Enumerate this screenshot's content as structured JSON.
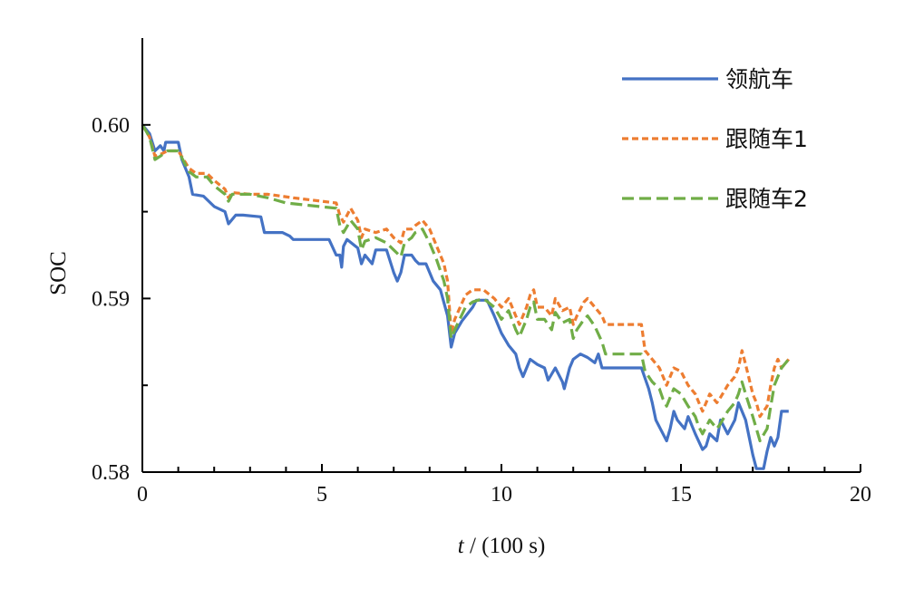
{
  "chart_data": {
    "type": "line",
    "title": "",
    "xlabel_italic": "t",
    "xlabel_rest": " / (100 s)",
    "ylabel": "SOC",
    "xlim": [
      0,
      20
    ],
    "ylim": [
      0.58,
      0.605
    ],
    "x_ticks": [
      "0",
      "5",
      "10",
      "15",
      "20"
    ],
    "x_tick_values": [
      0,
      5,
      10,
      15,
      20
    ],
    "y_ticks": [
      "0.58",
      "0.59",
      "0.60"
    ],
    "y_tick_values": [
      0.58,
      0.59,
      0.6
    ],
    "grid": false,
    "legend_position": "top-right",
    "series": [
      {
        "name": "领航车",
        "color": "#4472c4",
        "dash": "solid",
        "points": [
          [
            0,
            0.6
          ],
          [
            0.2,
            0.5995
          ],
          [
            0.35,
            0.5985
          ],
          [
            0.5,
            0.5988
          ],
          [
            0.6,
            0.5985
          ],
          [
            0.65,
            0.599
          ],
          [
            1.0,
            0.599
          ],
          [
            1.1,
            0.598
          ],
          [
            1.3,
            0.597
          ],
          [
            1.4,
            0.596
          ],
          [
            1.7,
            0.5959
          ],
          [
            2.0,
            0.5953
          ],
          [
            2.3,
            0.595
          ],
          [
            2.4,
            0.5943
          ],
          [
            2.6,
            0.5948
          ],
          [
            2.8,
            0.5948
          ],
          [
            3.3,
            0.5947
          ],
          [
            3.4,
            0.5938
          ],
          [
            3.9,
            0.5938
          ],
          [
            4.1,
            0.5936
          ],
          [
            4.2,
            0.5934
          ],
          [
            5.2,
            0.5934
          ],
          [
            5.4,
            0.5925
          ],
          [
            5.5,
            0.5925
          ],
          [
            5.55,
            0.5918
          ],
          [
            5.6,
            0.593
          ],
          [
            5.7,
            0.5934
          ],
          [
            6.0,
            0.5929
          ],
          [
            6.1,
            0.592
          ],
          [
            6.2,
            0.5925
          ],
          [
            6.4,
            0.592
          ],
          [
            6.5,
            0.5928
          ],
          [
            6.8,
            0.5928
          ],
          [
            7.0,
            0.5915
          ],
          [
            7.1,
            0.591
          ],
          [
            7.2,
            0.5915
          ],
          [
            7.3,
            0.5925
          ],
          [
            7.5,
            0.5925
          ],
          [
            7.6,
            0.5922
          ],
          [
            7.7,
            0.592
          ],
          [
            7.9,
            0.592
          ],
          [
            8.1,
            0.591
          ],
          [
            8.3,
            0.5905
          ],
          [
            8.5,
            0.589
          ],
          [
            8.6,
            0.5872
          ],
          [
            8.7,
            0.588
          ],
          [
            8.9,
            0.5887
          ],
          [
            9.2,
            0.5895
          ],
          [
            9.3,
            0.5899
          ],
          [
            9.6,
            0.5899
          ],
          [
            9.8,
            0.589
          ],
          [
            10.0,
            0.588
          ],
          [
            10.2,
            0.5873
          ],
          [
            10.4,
            0.5868
          ],
          [
            10.5,
            0.586
          ],
          [
            10.6,
            0.5855
          ],
          [
            10.8,
            0.5865
          ],
          [
            11.0,
            0.5862
          ],
          [
            11.2,
            0.586
          ],
          [
            11.3,
            0.5853
          ],
          [
            11.5,
            0.586
          ],
          [
            11.7,
            0.5852
          ],
          [
            11.75,
            0.5848
          ],
          [
            11.9,
            0.586
          ],
          [
            12.0,
            0.5865
          ],
          [
            12.2,
            0.5868
          ],
          [
            12.4,
            0.5866
          ],
          [
            12.6,
            0.5863
          ],
          [
            12.7,
            0.5868
          ],
          [
            12.8,
            0.586
          ],
          [
            12.9,
            0.586
          ],
          [
            13.9,
            0.586
          ],
          [
            14.1,
            0.5848
          ],
          [
            14.2,
            0.584
          ],
          [
            14.3,
            0.583
          ],
          [
            14.5,
            0.5822
          ],
          [
            14.6,
            0.5818
          ],
          [
            14.7,
            0.5825
          ],
          [
            14.8,
            0.5835
          ],
          [
            14.9,
            0.583
          ],
          [
            15.1,
            0.5825
          ],
          [
            15.2,
            0.5832
          ],
          [
            15.4,
            0.5822
          ],
          [
            15.6,
            0.5813
          ],
          [
            15.7,
            0.5815
          ],
          [
            15.8,
            0.5822
          ],
          [
            16.0,
            0.5818
          ],
          [
            16.1,
            0.583
          ],
          [
            16.3,
            0.5822
          ],
          [
            16.5,
            0.583
          ],
          [
            16.6,
            0.584
          ],
          [
            16.8,
            0.583
          ],
          [
            17.0,
            0.581
          ],
          [
            17.1,
            0.5802
          ],
          [
            17.3,
            0.5802
          ],
          [
            17.4,
            0.5812
          ],
          [
            17.5,
            0.582
          ],
          [
            17.6,
            0.5815
          ],
          [
            17.7,
            0.582
          ],
          [
            17.8,
            0.5835
          ],
          [
            18.0,
            0.5835
          ]
        ]
      },
      {
        "name": "跟随车1",
        "color": "#ed7d31",
        "dash": "short",
        "points": [
          [
            0,
            0.6
          ],
          [
            0.2,
            0.5993
          ],
          [
            0.35,
            0.5982
          ],
          [
            0.5,
            0.5983
          ],
          [
            0.7,
            0.5985
          ],
          [
            1.0,
            0.5985
          ],
          [
            1.3,
            0.5975
          ],
          [
            1.5,
            0.5972
          ],
          [
            1.8,
            0.5972
          ],
          [
            2.0,
            0.5968
          ],
          [
            2.3,
            0.5963
          ],
          [
            2.4,
            0.5958
          ],
          [
            2.5,
            0.5961
          ],
          [
            3.0,
            0.596
          ],
          [
            3.5,
            0.596
          ],
          [
            4.2,
            0.5958
          ],
          [
            5.4,
            0.5955
          ],
          [
            5.5,
            0.5948
          ],
          [
            5.6,
            0.5944
          ],
          [
            5.8,
            0.5952
          ],
          [
            6.0,
            0.5945
          ],
          [
            6.1,
            0.5935
          ],
          [
            6.2,
            0.594
          ],
          [
            6.5,
            0.5938
          ],
          [
            6.8,
            0.594
          ],
          [
            7.0,
            0.5935
          ],
          [
            7.2,
            0.5932
          ],
          [
            7.3,
            0.594
          ],
          [
            7.5,
            0.594
          ],
          [
            7.6,
            0.5942
          ],
          [
            7.8,
            0.5945
          ],
          [
            8.0,
            0.594
          ],
          [
            8.2,
            0.593
          ],
          [
            8.4,
            0.592
          ],
          [
            8.5,
            0.591
          ],
          [
            8.6,
            0.588
          ],
          [
            8.7,
            0.5888
          ],
          [
            9.0,
            0.5902
          ],
          [
            9.2,
            0.5905
          ],
          [
            9.5,
            0.5905
          ],
          [
            9.8,
            0.59
          ],
          [
            10.0,
            0.5895
          ],
          [
            10.2,
            0.59
          ],
          [
            10.4,
            0.589
          ],
          [
            10.5,
            0.5885
          ],
          [
            10.7,
            0.5895
          ],
          [
            10.8,
            0.5902
          ],
          [
            10.9,
            0.5905
          ],
          [
            11.0,
            0.5895
          ],
          [
            11.2,
            0.5895
          ],
          [
            11.4,
            0.589
          ],
          [
            11.5,
            0.59
          ],
          [
            11.7,
            0.5893
          ],
          [
            11.9,
            0.5895
          ],
          [
            12.0,
            0.5885
          ],
          [
            12.1,
            0.589
          ],
          [
            12.3,
            0.5898
          ],
          [
            12.4,
            0.59
          ],
          [
            12.6,
            0.5895
          ],
          [
            12.8,
            0.589
          ],
          [
            12.9,
            0.5885
          ],
          [
            13.9,
            0.5885
          ],
          [
            14.0,
            0.587
          ],
          [
            14.2,
            0.5865
          ],
          [
            14.4,
            0.586
          ],
          [
            14.5,
            0.5855
          ],
          [
            14.6,
            0.585
          ],
          [
            14.7,
            0.5855
          ],
          [
            14.8,
            0.586
          ],
          [
            15.0,
            0.5858
          ],
          [
            15.2,
            0.585
          ],
          [
            15.4,
            0.5845
          ],
          [
            15.5,
            0.584
          ],
          [
            15.6,
            0.5835
          ],
          [
            15.8,
            0.5845
          ],
          [
            16.0,
            0.584
          ],
          [
            16.1,
            0.5843
          ],
          [
            16.3,
            0.585
          ],
          [
            16.5,
            0.5855
          ],
          [
            16.6,
            0.586
          ],
          [
            16.7,
            0.587
          ],
          [
            16.8,
            0.5862
          ],
          [
            17.0,
            0.5845
          ],
          [
            17.1,
            0.584
          ],
          [
            17.2,
            0.5832
          ],
          [
            17.4,
            0.5838
          ],
          [
            17.5,
            0.585
          ],
          [
            17.6,
            0.586
          ],
          [
            17.7,
            0.5865
          ],
          [
            17.8,
            0.586
          ],
          [
            18.0,
            0.5865
          ]
        ]
      },
      {
        "name": "跟随车2",
        "color": "#70ad47",
        "dash": "long",
        "points": [
          [
            0,
            0.6
          ],
          [
            0.2,
            0.5993
          ],
          [
            0.35,
            0.598
          ],
          [
            0.5,
            0.5982
          ],
          [
            0.7,
            0.5985
          ],
          [
            1.0,
            0.5985
          ],
          [
            1.3,
            0.5973
          ],
          [
            1.5,
            0.597
          ],
          [
            1.8,
            0.597
          ],
          [
            2.0,
            0.5965
          ],
          [
            2.3,
            0.596
          ],
          [
            2.4,
            0.5956
          ],
          [
            2.5,
            0.596
          ],
          [
            3.0,
            0.596
          ],
          [
            3.5,
            0.5958
          ],
          [
            4.0,
            0.5955
          ],
          [
            5.4,
            0.5952
          ],
          [
            5.5,
            0.5942
          ],
          [
            5.6,
            0.5938
          ],
          [
            5.8,
            0.5945
          ],
          [
            6.0,
            0.594
          ],
          [
            6.1,
            0.5928
          ],
          [
            6.2,
            0.5933
          ],
          [
            6.5,
            0.5935
          ],
          [
            6.8,
            0.5932
          ],
          [
            7.0,
            0.5928
          ],
          [
            7.2,
            0.5924
          ],
          [
            7.3,
            0.5932
          ],
          [
            7.5,
            0.5935
          ],
          [
            7.6,
            0.5938
          ],
          [
            7.8,
            0.594
          ],
          [
            8.0,
            0.5932
          ],
          [
            8.2,
            0.5922
          ],
          [
            8.4,
            0.591
          ],
          [
            8.5,
            0.59
          ],
          [
            8.6,
            0.5877
          ],
          [
            8.7,
            0.5882
          ],
          [
            9.0,
            0.5895
          ],
          [
            9.2,
            0.5898
          ],
          [
            9.5,
            0.59
          ],
          [
            9.8,
            0.5895
          ],
          [
            10.0,
            0.5888
          ],
          [
            10.2,
            0.5893
          ],
          [
            10.4,
            0.5882
          ],
          [
            10.5,
            0.5878
          ],
          [
            10.7,
            0.5888
          ],
          [
            10.8,
            0.5895
          ],
          [
            10.9,
            0.5898
          ],
          [
            11.0,
            0.5888
          ],
          [
            11.2,
            0.5888
          ],
          [
            11.4,
            0.5882
          ],
          [
            11.5,
            0.5892
          ],
          [
            11.7,
            0.5886
          ],
          [
            11.9,
            0.5888
          ],
          [
            12.0,
            0.5877
          ],
          [
            12.1,
            0.5882
          ],
          [
            12.3,
            0.5888
          ],
          [
            12.4,
            0.589
          ],
          [
            12.6,
            0.5884
          ],
          [
            12.8,
            0.5875
          ],
          [
            12.9,
            0.5868
          ],
          [
            13.9,
            0.5868
          ],
          [
            14.0,
            0.5858
          ],
          [
            14.2,
            0.5852
          ],
          [
            14.4,
            0.5848
          ],
          [
            14.5,
            0.5842
          ],
          [
            14.6,
            0.5838
          ],
          [
            14.7,
            0.5843
          ],
          [
            14.8,
            0.5848
          ],
          [
            15.0,
            0.5845
          ],
          [
            15.2,
            0.5838
          ],
          [
            15.4,
            0.5832
          ],
          [
            15.5,
            0.5826
          ],
          [
            15.6,
            0.5822
          ],
          [
            15.8,
            0.583
          ],
          [
            16.0,
            0.5825
          ],
          [
            16.1,
            0.5828
          ],
          [
            16.3,
            0.5835
          ],
          [
            16.5,
            0.584
          ],
          [
            16.6,
            0.5845
          ],
          [
            16.7,
            0.5852
          ],
          [
            16.8,
            0.5845
          ],
          [
            17.0,
            0.5832
          ],
          [
            17.1,
            0.5825
          ],
          [
            17.2,
            0.5818
          ],
          [
            17.4,
            0.5825
          ],
          [
            17.5,
            0.5838
          ],
          [
            17.6,
            0.585
          ],
          [
            17.7,
            0.5855
          ],
          [
            17.8,
            0.586
          ],
          [
            18.0,
            0.5865
          ]
        ]
      }
    ]
  }
}
